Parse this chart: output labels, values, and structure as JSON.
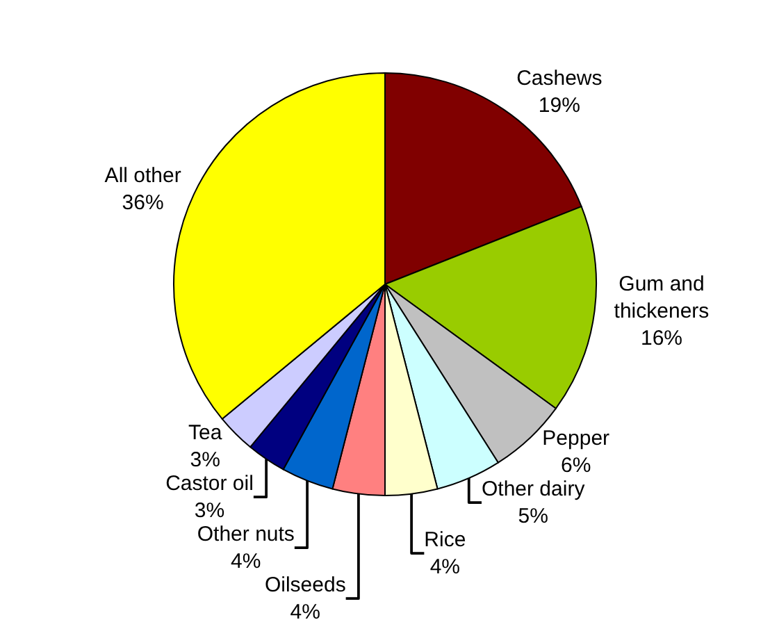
{
  "chart_data": {
    "type": "pie",
    "categories": [
      "Cashews",
      "Gum and thickeners",
      "Pepper",
      "Other dairy",
      "Rice",
      "Oilseeds",
      "Other nuts",
      "Castor oil",
      "Tea",
      "All other"
    ],
    "values": [
      19,
      16,
      6,
      5,
      4,
      4,
      4,
      3,
      3,
      36
    ],
    "value_labels": [
      "19%",
      "16%",
      "6%",
      "5%",
      "4%",
      "4%",
      "4%",
      "3%",
      "3%",
      "36%"
    ],
    "colors": [
      "#800000",
      "#99cc00",
      "#c0c0c0",
      "#ccffff",
      "#ffffcc",
      "#ff8080",
      "#0066cc",
      "#000080",
      "#ccccff",
      "#ffff00"
    ],
    "legend": false
  }
}
